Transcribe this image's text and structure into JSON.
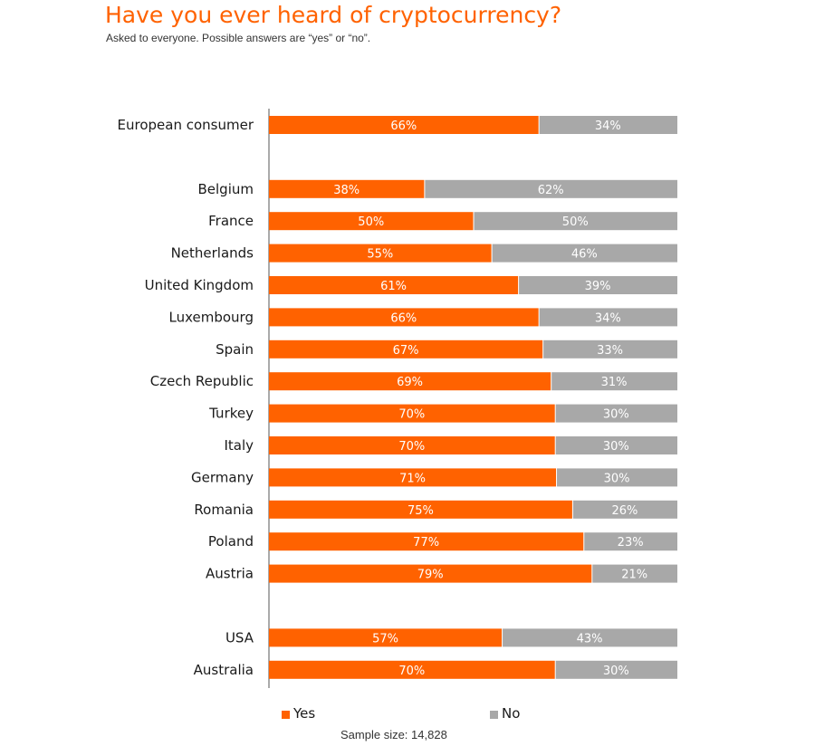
{
  "title": "Have you ever heard of cryptocurrency?",
  "subtitle": "Asked to everyone. Possible answers are “yes” or “no”.",
  "footer": {
    "sample_size": "Sample size: 14,828"
  },
  "colors": {
    "yes": "#ff6200",
    "no": "#a8a8a8",
    "axis": "#555555"
  },
  "chart_data": {
    "type": "bar",
    "orientation": "horizontal",
    "stacked": true,
    "title": "Have you ever heard of cryptocurrency?",
    "subtitle": "Asked to everyone. Possible answers are “yes” or “no”.",
    "groups": [
      [
        "European consumer"
      ],
      [
        "Belgium",
        "France",
        "Netherlands",
        "United Kingdom",
        "Luxembourg",
        "Spain",
        "Czech Republic",
        "Turkey",
        "Italy",
        "Germany",
        "Romania",
        "Poland",
        "Austria"
      ],
      [
        "USA",
        "Australia"
      ]
    ],
    "categories": [
      "European consumer",
      "Belgium",
      "France",
      "Netherlands",
      "United Kingdom",
      "Luxembourg",
      "Spain",
      "Czech Republic",
      "Turkey",
      "Italy",
      "Germany",
      "Romania",
      "Poland",
      "Austria",
      "USA",
      "Australia"
    ],
    "series": [
      {
        "name": "Yes",
        "values": [
          66,
          38,
          50,
          55,
          61,
          66,
          67,
          69,
          70,
          70,
          71,
          75,
          77,
          79,
          57,
          70
        ]
      },
      {
        "name": "No",
        "values": [
          34,
          62,
          50,
          46,
          39,
          34,
          33,
          31,
          30,
          30,
          30,
          26,
          23,
          21,
          43,
          30
        ]
      }
    ],
    "value_format": "{v}%",
    "legend": {
      "position": "bottom",
      "entries": [
        "Yes",
        "No"
      ]
    },
    "grid": false
  }
}
